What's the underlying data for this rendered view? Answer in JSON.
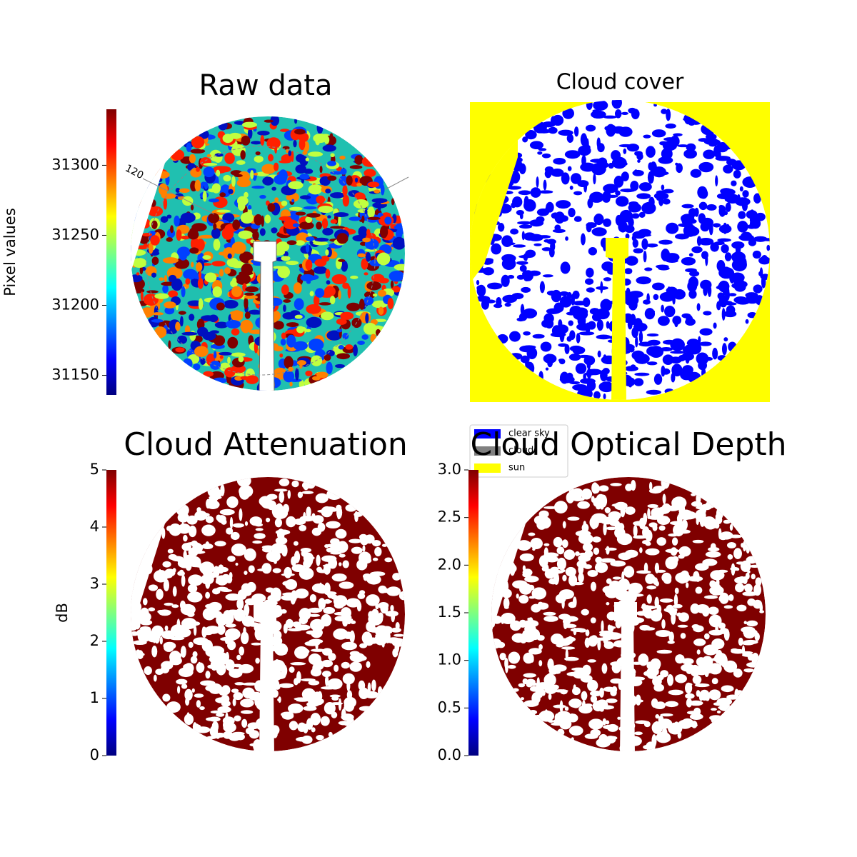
{
  "chart_data": [
    {
      "type": "image",
      "title": "Raw data",
      "colormap": "jet",
      "colorbar": {
        "label": "Pixel values",
        "ylim": [
          31136,
          31340
        ],
        "yticks": [
          31150,
          31200,
          31250,
          31300
        ]
      },
      "annotation": "120"
    },
    {
      "type": "image",
      "title": "Cloud cover",
      "series": [
        {
          "name": "clear sky",
          "color": "#0000ff"
        },
        {
          "name": "cloud",
          "color": "#808080"
        },
        {
          "name": "sun",
          "color": "#ffff00"
        }
      ]
    },
    {
      "type": "image",
      "title": "Cloud Attenuation",
      "colormap": "jet",
      "colorbar": {
        "label": "dB",
        "ylim": [
          0,
          5
        ],
        "yticks": [
          0,
          1,
          2,
          3,
          4,
          5
        ]
      }
    },
    {
      "type": "image",
      "title": "Cloud Optical Depth",
      "colormap": "jet",
      "colorbar": {
        "ylim": [
          0,
          3
        ],
        "yticks": [
          {
            "value": 0,
            "label": "0.0"
          },
          {
            "value": 0.5,
            "label": "0.5"
          },
          {
            "value": 1,
            "label": "1.0"
          },
          {
            "value": 1.5,
            "label": "1.5"
          },
          {
            "value": 2,
            "label": "2.0"
          },
          {
            "value": 2.5,
            "label": "2.5"
          },
          {
            "value": 3,
            "label": "3.0"
          }
        ]
      }
    }
  ]
}
